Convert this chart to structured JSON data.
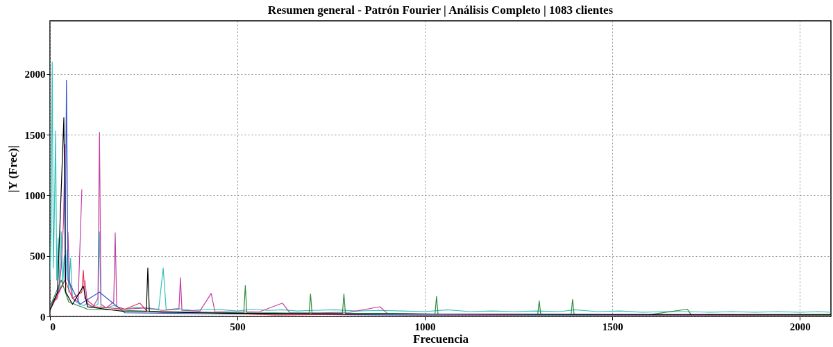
{
  "chart_data": {
    "type": "line",
    "title": "Resumen general - Patrón Fourier  | Análisis Completo | 1083 clientes",
    "xlabel": "Frecuencia",
    "ylabel": "|Y (Frec)|",
    "xlim": [
      0,
      2083
    ],
    "ylim": [
      0,
      2440
    ],
    "xticks": [
      0,
      500,
      1000,
      1500,
      2000
    ],
    "yticks": [
      0,
      500,
      1000,
      1500,
      2000
    ],
    "grid": true,
    "legend": false,
    "line_style": "solid",
    "marker": "none",
    "series": [
      {
        "color": "#33c2bb",
        "x": [
          0,
          3,
          6,
          9,
          12,
          15,
          18,
          22,
          26,
          30,
          34,
          38,
          42,
          46,
          50,
          55,
          60,
          70,
          80,
          90,
          100,
          110,
          120,
          128,
          132,
          136,
          150,
          170,
          200,
          230,
          260,
          290,
          302,
          310,
          340,
          380,
          420,
          460,
          500,
          540,
          580,
          620,
          660,
          700,
          760,
          820,
          880,
          940,
          1000,
          1060,
          1120,
          1180,
          1240,
          1300,
          1360,
          1400,
          1460,
          1520,
          1580,
          1640,
          1700,
          1760,
          1820,
          1880,
          1940,
          2000,
          2050,
          2083
        ],
        "values": [
          300,
          700,
          2100,
          400,
          900,
          1530,
          300,
          650,
          200,
          700,
          250,
          500,
          300,
          550,
          200,
          480,
          150,
          120,
          100,
          90,
          110,
          80,
          90,
          100,
          700,
          80,
          70,
          90,
          60,
          75,
          70,
          60,
          400,
          55,
          65,
          50,
          60,
          55,
          45,
          60,
          50,
          55,
          45,
          50,
          55,
          45,
          50,
          45,
          40,
          55,
          40,
          45,
          40,
          45,
          40,
          55,
          40,
          45,
          35,
          40,
          40,
          35,
          40,
          35,
          40,
          35,
          40,
          35
        ]
      },
      {
        "color": "#c23fa3",
        "x": [
          0,
          20,
          30,
          36,
          40,
          44,
          48,
          52,
          60,
          75,
          85,
          89,
          93,
          100,
          115,
          128,
          132,
          136,
          150,
          170,
          174,
          178,
          200,
          250,
          300,
          344,
          348,
          352,
          400,
          430,
          440,
          500,
          560,
          620,
          640,
          720,
          800,
          880,
          900,
          1000,
          1200,
          1500,
          2083
        ],
        "values": [
          100,
          150,
          400,
          780,
          1420,
          null,
          700,
          300,
          150,
          120,
          1050,
          null,
          300,
          100,
          80,
          150,
          1520,
          100,
          70,
          120,
          690,
          80,
          60,
          70,
          50,
          60,
          320,
          50,
          45,
          190,
          40,
          35,
          40,
          110,
          30,
          30,
          35,
          80,
          25,
          20,
          20,
          15,
          15
        ]
      },
      {
        "color": "#3355cc",
        "x": [
          0,
          40,
          44,
          48,
          80,
          132,
          200,
          500,
          1000,
          2083
        ],
        "values": [
          80,
          300,
          1950,
          300,
          100,
          200,
          30,
          20,
          10,
          10
        ]
      },
      {
        "color": "#e8304a",
        "x": [
          0,
          40,
          60,
          85,
          89,
          93,
          120,
          200,
          240,
          260,
          400,
          600,
          900,
          1200,
          2083
        ],
        "values": [
          50,
          300,
          150,
          200,
          380,
          150,
          80,
          60,
          110,
          40,
          35,
          12,
          20,
          15,
          10
        ]
      },
      {
        "color": "#2a8a3a",
        "x": [
          0,
          30,
          50,
          100,
          200,
          300,
          400,
          517,
          521,
          525,
          600,
          691,
          695,
          699,
          780,
          784,
          788,
          900,
          1027,
          1031,
          1035,
          1200,
          1301,
          1305,
          1309,
          1390,
          1394,
          1398,
          1600,
          1700,
          1710,
          2083
        ],
        "values": [
          80,
          300,
          120,
          60,
          50,
          40,
          35,
          30,
          255,
          30,
          30,
          25,
          185,
          25,
          25,
          185,
          25,
          25,
          20,
          165,
          20,
          20,
          15,
          130,
          15,
          15,
          140,
          15,
          15,
          60,
          15,
          10
        ]
      },
      {
        "color": "#000000",
        "x": [
          0,
          20,
          37,
          42,
          60,
          89,
          100,
          150,
          200,
          257,
          261,
          265,
          300,
          400,
          500,
          600,
          800,
          1000,
          1200,
          1500,
          1800,
          2083
        ],
        "values": [
          50,
          200,
          1640,
          200,
          100,
          250,
          80,
          60,
          40,
          40,
          400,
          40,
          35,
          30,
          25,
          25,
          20,
          20,
          20,
          15,
          15,
          15
        ]
      }
    ]
  }
}
